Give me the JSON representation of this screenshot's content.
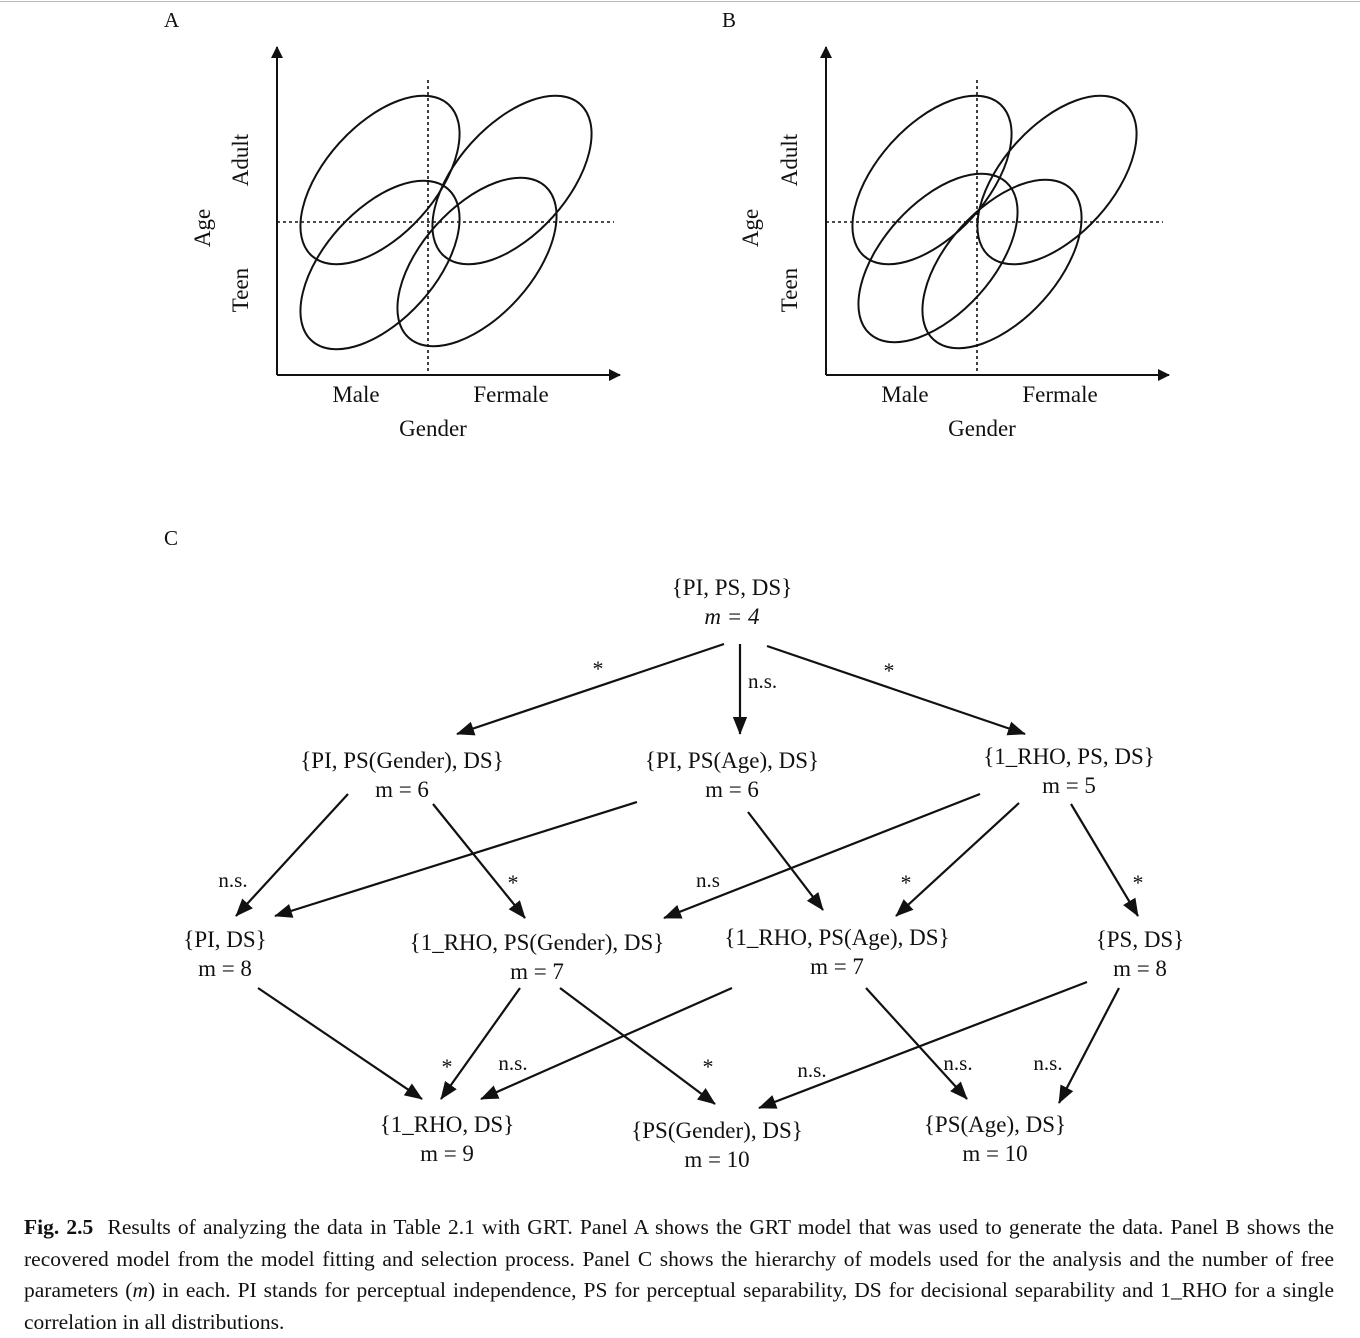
{
  "panel_a": {
    "label": "A",
    "y_axis_label": "Age",
    "y_top_label": "Adult",
    "y_bottom_label": "Teen",
    "x_axis_label": "Gender",
    "x_left_label": "Male",
    "x_right_label": "Fermale"
  },
  "panel_b": {
    "label": "B",
    "y_axis_label": "Age",
    "y_top_label": "Adult",
    "y_bottom_label": "Teen",
    "x_axis_label": "Gender",
    "x_left_label": "Male",
    "x_right_label": "Fermale"
  },
  "panel_c": {
    "label": "C",
    "nodes": {
      "top": {
        "name": "{PI, PS, DS}",
        "m": "m = 4"
      },
      "pi_psg": {
        "name": "{PI, PS(Gender), DS}",
        "m": "m = 6"
      },
      "pi_psa": {
        "name": "{PI, PS(Age), DS}",
        "m": "m = 6"
      },
      "rho_ps": {
        "name": "{1_RHO, PS, DS}",
        "m": "m = 5"
      },
      "pi_ds": {
        "name": "{PI, DS}",
        "m": "m = 8"
      },
      "rho_psg": {
        "name": "{1_RHO, PS(Gender), DS}",
        "m": "m = 7"
      },
      "rho_psa": {
        "name": "{1_RHO, PS(Age), DS}",
        "m": "m = 7"
      },
      "ps_ds": {
        "name": "{PS, DS}",
        "m": "m = 8"
      },
      "rho_ds": {
        "name": "{1_RHO, DS}",
        "m": "m = 9"
      },
      "psg_ds": {
        "name": "{PS(Gender), DS}",
        "m": "m = 10"
      },
      "psa_ds": {
        "name": "{PS(Age), DS}",
        "m": "m = 10"
      }
    },
    "edge_labels": {
      "top_left": "*",
      "top_mid": "n.s.",
      "top_right": "*",
      "l2_ns_left": "n.s.",
      "l2_star_1": "*",
      "l2_ns_mid": "n.s",
      "l2_star_2": "*",
      "l2_star_3": "*",
      "l3_star_1": "*",
      "l3_ns_1": "n.s.",
      "l3_star_2": "*",
      "l3_ns_2": "n.s.",
      "l3_ns_3": "n.s.",
      "l3_ns_4": "n.s."
    }
  },
  "caption": {
    "fig_label": "Fig. 2.5",
    "text_1": "Results of analyzing the data in Table 2.1 with GRT. Panel A shows the GRT model that was used to generate the data. Panel B shows the recovered model from the model fitting and selection process. Panel C shows the hierarchy of models used for the analysis and the number of free parameters (",
    "m_symbol": "m",
    "text_2": ") in each. PI stands for perceptual independence, PS for perceptual separability, DS for decisional separability and 1_RHO for a single correlation in all distributions."
  }
}
